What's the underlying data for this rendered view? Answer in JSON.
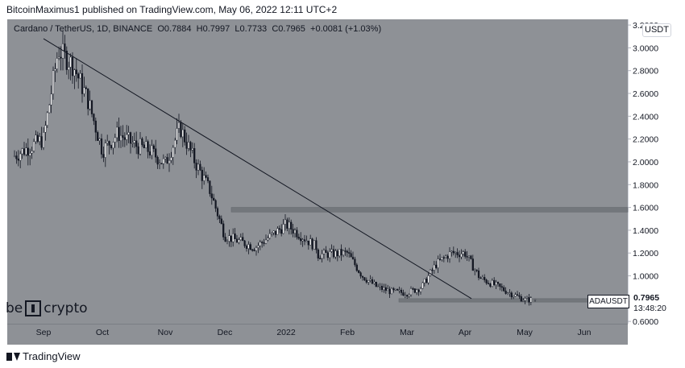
{
  "header": {
    "published": "BitcoinMaximus1 published on TradingView.com, May 06, 2022 12:11 UTC+2"
  },
  "legend": {
    "symbol": "Cardano / TetherUS, 1D, BINANCE",
    "o_key": "O",
    "o_val": "0.7884",
    "h_key": "H",
    "h_val": "0.7997",
    "l_key": "L",
    "l_val": "0.7733",
    "c_key": "C",
    "c_val": "0.7965",
    "change": "+0.0081 (+1.03%)"
  },
  "currency": "USDT",
  "price_tag": {
    "price": "0.7965",
    "countdown": "13:48:20"
  },
  "symbol_tag": "ADAUSDT",
  "watermark": {
    "left": "be",
    "right": "crypto"
  },
  "footer": {
    "brand": "TradingView"
  },
  "colors": {
    "background": "#8e9196",
    "up": "#ffffff",
    "down": "#131722",
    "zone": "#6f7378",
    "trendline": "#131722"
  },
  "chart_data": {
    "type": "candlestick",
    "title": "Cardano / TetherUS, 1D, BINANCE",
    "y_ticks": [
      "3.2000",
      "3.0000",
      "2.8000",
      "2.6000",
      "2.4000",
      "2.2000",
      "2.0000",
      "1.8000",
      "1.6000",
      "1.4000",
      "1.2000",
      "1.0000",
      "0.6000"
    ],
    "x_ticks": [
      "Sep",
      "Oct",
      "Nov",
      "Dec",
      "2022",
      "Feb",
      "Mar",
      "Apr",
      "May",
      "Jun"
    ],
    "ylim": [
      0.58,
      3.25
    ],
    "grid": false,
    "anchors": [
      [
        "Sep",
        2.2
      ],
      [
        "Sep",
        2.98
      ],
      [
        "Sep",
        2.85
      ],
      [
        "Sep",
        2.55
      ],
      [
        "Oct",
        2.1
      ],
      [
        "Oct",
        2.25
      ],
      [
        "Oct",
        2.15
      ],
      [
        "Oct",
        2.1
      ],
      [
        "Nov",
        1.98
      ],
      [
        "Nov",
        2.3
      ],
      [
        "Nov",
        2.0
      ],
      [
        "Nov",
        1.75
      ],
      [
        "Dec",
        1.35
      ],
      [
        "Dec",
        1.25
      ],
      [
        "Dec",
        1.45
      ],
      [
        "Dec",
        1.25
      ],
      [
        "2022",
        1.3
      ],
      [
        "2022",
        1.55
      ],
      [
        "2022",
        1.05
      ],
      [
        "2022",
        1.08
      ],
      [
        "Feb",
        1.2
      ],
      [
        "Feb",
        1.0
      ],
      [
        "Feb",
        0.9
      ],
      [
        "Feb",
        0.86
      ],
      [
        "Mar",
        0.85
      ],
      [
        "Mar",
        0.9
      ],
      [
        "Mar",
        1.1
      ],
      [
        "Mar",
        1.2
      ],
      [
        "Apr",
        1.2
      ],
      [
        "Apr",
        0.98
      ],
      [
        "Apr",
        0.92
      ],
      [
        "Apr",
        0.85
      ],
      [
        "May",
        0.79
      ]
    ],
    "last": {
      "open": 0.7884,
      "high": 0.7997,
      "low": 0.7733,
      "close": 0.7965
    },
    "zones": [
      {
        "top": 1.6,
        "bottom": 1.56,
        "from": "Dec",
        "to": "Jun"
      },
      {
        "top": 0.8,
        "bottom": 0.77,
        "from": "Mar",
        "to": "Jun"
      }
    ],
    "trendline": {
      "from": [
        "Sep",
        3.08
      ],
      "to": [
        "Apr",
        0.8
      ]
    }
  }
}
